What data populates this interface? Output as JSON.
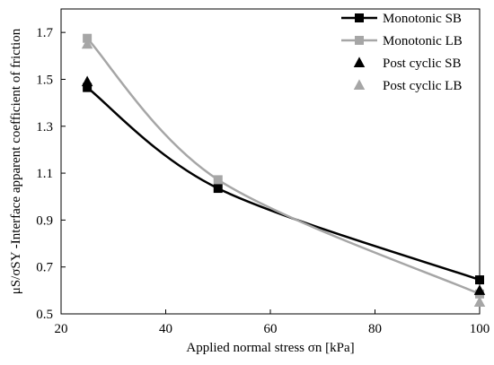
{
  "chart_data": {
    "type": "line",
    "title": "",
    "xlabel": "Applied normal stress σn [kPa]",
    "ylabel": "μS/σSY -Interface apparent coefficient of friction",
    "xlim": [
      20,
      100
    ],
    "ylim": [
      0.5,
      1.8
    ],
    "xticks": [
      20,
      40,
      60,
      80,
      100
    ],
    "yticks": [
      0.5,
      0.7,
      0.9,
      1.1,
      1.3,
      1.5,
      1.7
    ],
    "xtick_labels": [
      "20",
      "40",
      "60",
      "80",
      "100"
    ],
    "ytick_labels": [
      "0.5",
      "0.7",
      "0.9",
      "1.1",
      "1.3",
      "1.5",
      "1.7"
    ],
    "grid": false,
    "legend_position": "top-right",
    "series": [
      {
        "name": "Monotonic SB",
        "kind": "line-marker",
        "marker": "square",
        "color": "#000000",
        "x": [
          25,
          50,
          100
        ],
        "y": [
          1.465,
          1.035,
          0.645
        ]
      },
      {
        "name": "Monotonic LB",
        "kind": "line-marker",
        "marker": "square",
        "color": "#a6a6a6",
        "x": [
          25,
          50,
          100
        ],
        "y": [
          1.675,
          1.072,
          0.585
        ]
      },
      {
        "name": "Post cyclic SB",
        "kind": "marker-only",
        "marker": "triangle",
        "color": "#000000",
        "x": [
          25,
          100
        ],
        "y": [
          1.49,
          0.6
        ]
      },
      {
        "name": "Post cyclic LB",
        "kind": "marker-only",
        "marker": "triangle",
        "color": "#a6a6a6",
        "x": [
          25,
          100
        ],
        "y": [
          1.65,
          0.55
        ]
      }
    ]
  }
}
